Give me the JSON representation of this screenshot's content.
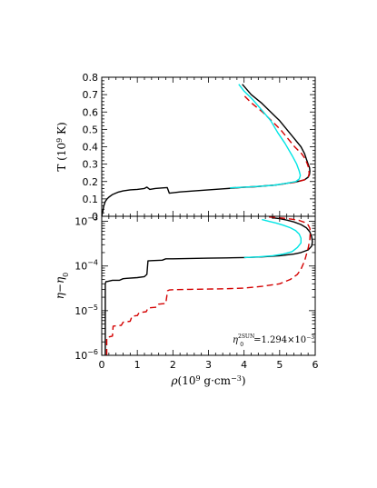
{
  "chart_data": [
    {
      "type": "line",
      "panel": "top",
      "ylabel": "T (10<sup>9</sup> K)",
      "ylabel_parts": {
        "base": "T (10",
        "exp": "9",
        "tail": " K)"
      },
      "xlim": [
        0,
        6
      ],
      "ylim": [
        0,
        0.8
      ],
      "yticks": [
        "0",
        "0.1",
        "0.2",
        "0.3",
        "0.4",
        "0.5",
        "0.6",
        "0.7",
        "0.8"
      ],
      "yticks_values": [
        0,
        0.1,
        0.2,
        0.3,
        0.4,
        0.5,
        0.6,
        0.7,
        0.8
      ],
      "series": [
        {
          "color": "#000000",
          "dash": "solid",
          "x": [
            0.0,
            0.03,
            0.06,
            0.1,
            0.15,
            0.2,
            0.3,
            0.45,
            0.6,
            0.8,
            1.0,
            1.2,
            1.27,
            1.35,
            1.5,
            1.7,
            1.84,
            1.9,
            2.2,
            2.6,
            3.0,
            3.4,
            3.7,
            4.0,
            4.3,
            4.6,
            4.9,
            5.2,
            5.5,
            5.7,
            5.8,
            5.84,
            5.85,
            5.84,
            5.8,
            5.75,
            5.7,
            5.6,
            5.4,
            5.2,
            5.0,
            4.75,
            4.5,
            4.2,
            3.95
          ],
          "y": [
            0.0,
            0.03,
            0.06,
            0.085,
            0.1,
            0.11,
            0.125,
            0.138,
            0.146,
            0.152,
            0.155,
            0.16,
            0.168,
            0.155,
            0.16,
            0.163,
            0.165,
            0.133,
            0.14,
            0.146,
            0.152,
            0.158,
            0.162,
            0.167,
            0.17,
            0.175,
            0.18,
            0.19,
            0.2,
            0.21,
            0.225,
            0.24,
            0.26,
            0.28,
            0.3,
            0.33,
            0.36,
            0.4,
            0.45,
            0.5,
            0.55,
            0.6,
            0.65,
            0.7,
            0.76
          ]
        },
        {
          "color": "#d40000",
          "dash": "dashed",
          "x": [
            3.6,
            4.0,
            4.4,
            4.8,
            5.2,
            5.5,
            5.7,
            5.8,
            5.83,
            5.82,
            5.78,
            5.72,
            5.62,
            5.42,
            5.22,
            5.02,
            4.77,
            4.52,
            4.22,
            3.97
          ],
          "y": [
            0.163,
            0.168,
            0.172,
            0.178,
            0.188,
            0.198,
            0.21,
            0.225,
            0.245,
            0.275,
            0.3,
            0.33,
            0.36,
            0.4,
            0.45,
            0.5,
            0.55,
            0.6,
            0.65,
            0.7
          ]
        },
        {
          "color": "#00e5e5",
          "dash": "solid",
          "x": [
            3.6,
            4.0,
            4.4,
            4.8,
            5.2,
            5.45,
            5.55,
            5.58,
            5.55,
            5.48,
            5.35,
            5.15,
            4.95,
            4.75,
            4.5,
            4.25,
            4.0,
            3.85
          ],
          "y": [
            0.163,
            0.168,
            0.172,
            0.178,
            0.19,
            0.2,
            0.215,
            0.235,
            0.26,
            0.3,
            0.35,
            0.42,
            0.48,
            0.55,
            0.61,
            0.67,
            0.72,
            0.76
          ]
        }
      ]
    },
    {
      "type": "line",
      "panel": "bottom",
      "ylabel_parts": {
        "main": "η−η",
        "sub": "0"
      },
      "xlabel_parts": {
        "rho": "ρ",
        "base": "(10",
        "exp": "9",
        "tail": " g·cm",
        "exp2": "−3",
        "close": ")"
      },
      "xlim": [
        0,
        6
      ],
      "ylim": [
        1e-06,
        0.0013
      ],
      "yscale": "log",
      "xticks": [
        "0",
        "1",
        "2",
        "3",
        "4",
        "5",
        "6"
      ],
      "xticks_values": [
        0,
        1,
        2,
        3,
        4,
        5,
        6
      ],
      "yticks": [
        {
          "base": "10",
          "exp": "−6",
          "value": 1e-06
        },
        {
          "base": "10",
          "exp": "−5",
          "value": 1e-05
        },
        {
          "base": "10",
          "exp": "−4",
          "value": 0.0001
        },
        {
          "base": "10",
          "exp": "−3",
          "value": 0.001
        }
      ],
      "annotation": {
        "sym": "η",
        "sup": "2SUN",
        "sub": "0",
        "text": "=1.294×10",
        "exp": "−3"
      },
      "series": [
        {
          "color": "#000000",
          "dash": "solid",
          "x": [
            0.1,
            0.1,
            0.12,
            0.15,
            0.3,
            0.5,
            0.6,
            0.7,
            1.0,
            1.2,
            1.27,
            1.3,
            1.4,
            1.7,
            1.8,
            2.0,
            2.5,
            3.0,
            3.5,
            4.0,
            4.5,
            5.0,
            5.4,
            5.6,
            5.8,
            5.9,
            5.92,
            5.9,
            5.85,
            5.75,
            5.6,
            5.4,
            5.2,
            5.0,
            4.8
          ],
          "y": [
            1e-06,
            4e-05,
            4.5e-05,
            4.5e-05,
            4.8e-05,
            4.8e-05,
            5.2e-05,
            5.3e-05,
            5.5e-05,
            5.8e-05,
            6.5e-05,
            0.00013,
            0.000132,
            0.000135,
            0.000145,
            0.000145,
            0.000148,
            0.00015,
            0.000152,
            0.000155,
            0.00016,
            0.00017,
            0.000185,
            0.0002,
            0.00023,
            0.00028,
            0.00035,
            0.00045,
            0.00058,
            0.00072,
            0.00085,
            0.00097,
            0.00107,
            0.00115,
            0.0012
          ]
        },
        {
          "color": "#d40000",
          "dash": "dashed",
          "x": [
            0.14,
            0.14,
            0.3,
            0.32,
            0.55,
            0.6,
            0.8,
            0.85,
            1.0,
            1.05,
            1.25,
            1.3,
            1.55,
            1.6,
            1.8,
            1.85,
            1.9,
            2.0,
            2.5,
            3.0,
            3.5,
            4.0,
            4.5,
            5.0,
            5.3,
            5.5,
            5.6,
            5.7,
            5.8,
            5.85,
            5.86,
            5.85,
            5.8,
            5.7,
            5.55,
            5.35,
            5.1,
            4.9,
            4.7
          ],
          "y": [
            1e-06,
            2.5e-06,
            2.7e-06,
            4.5e-06,
            4.7e-06,
            5.5e-06,
            5.8e-06,
            7.5e-06,
            7.8e-06,
            9e-06,
            9.5e-06,
            1.15e-05,
            1.2e-05,
            1.4e-05,
            1.45e-05,
            2.8e-05,
            2.9e-05,
            2.95e-05,
            3e-05,
            3.05e-05,
            3.1e-05,
            3.2e-05,
            3.5e-05,
            4e-05,
            5e-05,
            6.5e-05,
            8.5e-05,
            0.00013,
            0.00025,
            0.0004,
            0.00055,
            0.0007,
            0.00083,
            0.00095,
            0.00105,
            0.00112,
            0.00118,
            0.00122,
            0.00125
          ]
        },
        {
          "color": "#00e5e5",
          "dash": "solid",
          "x": [
            4.0,
            4.4,
            4.8,
            5.1,
            5.35,
            5.5,
            5.6,
            5.6,
            5.55,
            5.45,
            5.3,
            5.1,
            4.9,
            4.7,
            4.5
          ],
          "y": [
            0.000155,
            0.00016,
            0.00017,
            0.000185,
            0.00021,
            0.00026,
            0.00033,
            0.00042,
            0.00052,
            0.00062,
            0.00072,
            0.00082,
            0.00092,
            0.001,
            0.0011
          ]
        }
      ]
    }
  ]
}
